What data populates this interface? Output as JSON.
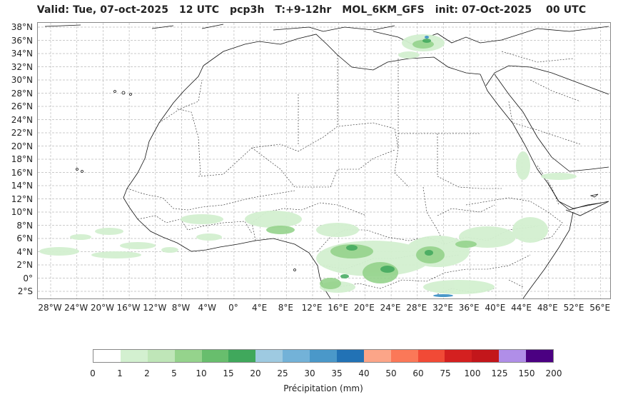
{
  "title": "Valid: Tue, 07-oct-2025   12 UTC   pcp3h   T:+9-12hr   MOL_6KM_GFS   init: 07-Oct-2025    00 UTC",
  "lat_labels": [
    "38°N",
    "36°N",
    "34°N",
    "32°N",
    "30°N",
    "28°N",
    "26°N",
    "24°N",
    "22°N",
    "20°N",
    "18°N",
    "16°N",
    "14°N",
    "12°N",
    "10°N",
    "8°N",
    "6°N",
    "4°N",
    "2°N",
    "0°",
    "2°S"
  ],
  "lon_labels": [
    "28°W",
    "24°W",
    "20°W",
    "16°W",
    "12°W",
    "8°W",
    "4°W",
    "0°",
    "4°E",
    "8°E",
    "12°E",
    "16°E",
    "20°E",
    "24°E",
    "28°E",
    "32°E",
    "36°E",
    "40°E",
    "44°E",
    "48°E",
    "52°E",
    "56°E"
  ],
  "colorbar": {
    "label": "Précipitation (mm)",
    "ticks": [
      "0",
      "1",
      "2",
      "5",
      "10",
      "15",
      "20",
      "25",
      "30",
      "35",
      "40",
      "50",
      "60",
      "75",
      "100",
      "125",
      "150",
      "200"
    ],
    "colors": [
      "#ffffff",
      "#d3f0d0",
      "#bfe6b8",
      "#95d38c",
      "#68be6d",
      "#40a85c",
      "#9ecae1",
      "#73b2d8",
      "#4a98c9",
      "#2272b5",
      "#fca588",
      "#fb7858",
      "#f14a36",
      "#d42020",
      "#c3161b",
      "#b08ee8",
      "#4b0082"
    ]
  }
}
